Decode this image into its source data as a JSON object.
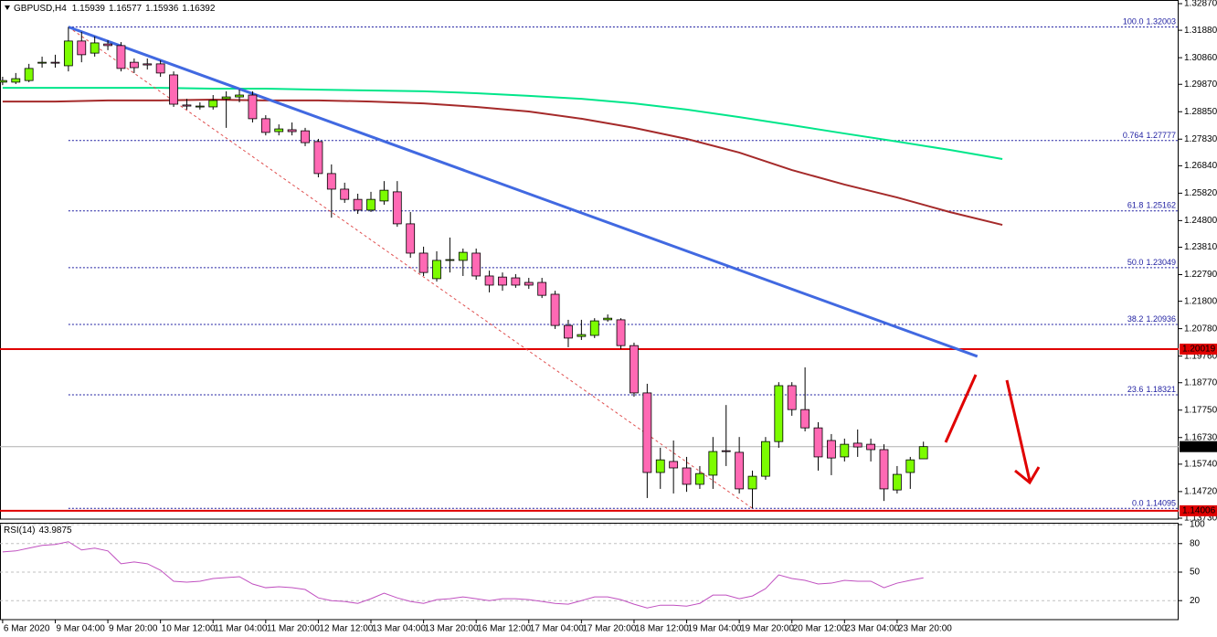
{
  "chart_data": {
    "type": "candlestick",
    "symbol": "GBPUSD,H4",
    "categories": [
      "6 Mar 2020",
      null,
      null,
      null,
      "9 Mar 04:00",
      null,
      null,
      null,
      "9 Mar 20:00",
      null,
      null,
      null,
      "10 Mar 12:00",
      null,
      null,
      null,
      "11 Mar 04:00",
      null,
      null,
      null,
      "11 Mar 20:00",
      null,
      null,
      null,
      "12 Mar 12:00",
      null,
      null,
      null,
      "13 Mar 04:00",
      null,
      null,
      null,
      "13 Mar 20:00",
      null,
      null,
      null,
      "16 Mar 12:00",
      null,
      null,
      null,
      "17 Mar 04:00",
      null,
      null,
      null,
      "17 Mar 20:00",
      null,
      null,
      null,
      "18 Mar 12:00",
      null,
      null,
      null,
      "19 Mar 04:00",
      null,
      null,
      null,
      "19 Mar 20:00",
      null,
      null,
      null,
      "20 Mar 12:00",
      null,
      null,
      null,
      "23 Mar 04:00",
      null,
      null,
      null,
      "23 Mar 20:00",
      null,
      null
    ],
    "open": [
      1.2995,
      1.2995,
      1.3001,
      1.3066,
      1.3069,
      1.3056,
      1.3148,
      1.3103,
      1.3137,
      1.3131,
      1.3069,
      1.3063,
      1.3063,
      1.3022,
      1.291,
      1.2903,
      1.2903,
      1.2933,
      1.294,
      1.2947,
      1.2859,
      1.2811,
      1.2818,
      1.2814,
      1.2774,
      1.2655,
      1.2597,
      1.2559,
      1.2519,
      1.2553,
      1.2587,
      1.2468,
      1.2359,
      1.2264,
      1.2332,
      1.2332,
      1.2359,
      1.2274,
      1.227,
      1.2267,
      1.225,
      1.225,
      1.2206,
      1.209,
      1.2049,
      1.2053,
      1.2111,
      1.2111,
      1.2015,
      1.1839,
      1.1543,
      1.1584,
      1.156,
      1.1499,
      1.1533,
      1.1624,
      1.1618,
      1.1482,
      1.1529,
      1.1658,
      1.1866,
      1.1777,
      1.1709,
      1.1662,
      1.1601,
      1.1652,
      1.1648,
      1.1628,
      1.1478,
      1.1543,
      1.15939
    ],
    "high": [
      1.3015,
      1.3029,
      1.3063,
      1.309,
      1.3097,
      1.32003,
      1.3182,
      1.3165,
      1.3151,
      1.3144,
      1.3083,
      1.3083,
      1.3076,
      1.3035,
      1.2933,
      1.292,
      1.2947,
      1.2961,
      1.2967,
      1.2961,
      1.2872,
      1.2838,
      1.2845,
      1.2825,
      1.2784,
      1.2689,
      1.2621,
      1.258,
      1.2587,
      1.2627,
      1.2627,
      1.2512,
      1.2383,
      1.2366,
      1.2417,
      1.2376,
      1.2376,
      1.2294,
      1.2287,
      1.2281,
      1.2267,
      1.2267,
      1.2219,
      1.2111,
      1.2111,
      1.2117,
      1.2131,
      1.2117,
      1.2026,
      1.1873,
      1.1635,
      1.1662,
      1.1601,
      1.1567,
      1.1675,
      1.1794,
      1.1675,
      1.155,
      1.1675,
      1.1879,
      1.1879,
      1.1934,
      1.173,
      1.1686,
      1.1669,
      1.1703,
      1.1669,
      1.1648,
      1.1567,
      1.1601,
      1.16577
    ],
    "low": [
      1.2984,
      1.2988,
      1.2995,
      1.3049,
      1.3049,
      1.3035,
      1.3069,
      1.309,
      1.3114,
      1.3035,
      1.3029,
      1.3042,
      1.3015,
      1.2903,
      1.2893,
      1.2893,
      1.2893,
      1.2825,
      1.292,
      1.2845,
      1.2797,
      1.2797,
      1.2797,
      1.2757,
      1.2641,
      1.2491,
      1.2546,
      1.2505,
      1.2512,
      1.2539,
      1.2457,
      1.2342,
      1.2274,
      1.2253,
      1.2287,
      1.2274,
      1.226,
      1.2213,
      1.2219,
      1.223,
      1.2226,
      1.2192,
      1.2077,
      1.2009,
      1.2036,
      1.2043,
      1.2104,
      1.2002,
      1.1825,
      1.1448,
      1.1482,
      1.1465,
      1.1471,
      1.1482,
      1.1482,
      1.1567,
      1.1465,
      1.14095,
      1.1516,
      1.1635,
      1.1754,
      1.1696,
      1.155,
      1.1533,
      1.1584,
      1.1601,
      1.1584,
      1.1437,
      1.1465,
      1.1482,
      1.15936
    ],
    "close": [
      1.3001,
      1.3008,
      1.3046,
      1.3069,
      1.3066,
      1.3148,
      1.3097,
      1.3141,
      1.3131,
      1.3046,
      1.3049,
      1.3059,
      1.3029,
      1.2913,
      1.2906,
      1.2906,
      1.2927,
      1.294,
      1.2947,
      1.2859,
      1.2808,
      1.2821,
      1.2811,
      1.277,
      1.2655,
      1.2597,
      1.2559,
      1.2519,
      1.2559,
      1.2593,
      1.2468,
      1.2359,
      1.2287,
      1.2332,
      1.2335,
      1.2362,
      1.2274,
      1.224,
      1.224,
      1.224,
      1.224,
      1.2202,
      1.209,
      1.2043,
      1.2056,
      1.2107,
      1.2117,
      1.2015,
      1.1839,
      1.1543,
      1.159,
      1.156,
      1.1499,
      1.1539,
      1.1621,
      1.1621,
      1.1482,
      1.1529,
      1.1658,
      1.1866,
      1.1777,
      1.1709,
      1.1601,
      1.1597,
      1.1648,
      1.1638,
      1.1628,
      1.1482,
      1.1536,
      1.159,
      1.16392
    ],
    "up_color": "#7cfc00",
    "down_color": "#ff69b4",
    "xlim": [
      -0.2,
      89.4
    ],
    "ylim": [
      1.13696,
      1.33006
    ],
    "yticks": [
      {
        "value": 1.3287,
        "label": "1.32870"
      },
      {
        "value": 1.3188,
        "label": "1.31880"
      },
      {
        "value": 1.3086,
        "label": "1.30860"
      },
      {
        "value": 1.2987,
        "label": "1.29870"
      },
      {
        "value": 1.2885,
        "label": "1.28850"
      },
      {
        "value": 1.2783,
        "label": "1.27830"
      },
      {
        "value": 1.2684,
        "label": "1.26840"
      },
      {
        "value": 1.2582,
        "label": "1.25820"
      },
      {
        "value": 1.248,
        "label": "1.24800"
      },
      {
        "value": 1.2381,
        "label": "1.23810"
      },
      {
        "value": 1.2279,
        "label": "1.22790"
      },
      {
        "value": 1.218,
        "label": "1.21800"
      },
      {
        "value": 1.2078,
        "label": "1.20780"
      },
      {
        "value": 1.1976,
        "label": "1.19760"
      },
      {
        "value": 1.1877,
        "label": "1.18770"
      },
      {
        "value": 1.1775,
        "label": "1.17750"
      },
      {
        "value": 1.1673,
        "label": "1.16730"
      },
      {
        "value": 1.1574,
        "label": "1.15740"
      },
      {
        "value": 1.1472,
        "label": "1.14720"
      },
      {
        "value": 1.1373,
        "label": "1.13730"
      }
    ],
    "moving_averages": [
      {
        "color": "#00e68a",
        "x": [
          0,
          4,
          8,
          12,
          16,
          20,
          24,
          28,
          32,
          36,
          40,
          44,
          48,
          52,
          56,
          60,
          64,
          68,
          72,
          76
        ],
        "values": [
          1.2974,
          1.2974,
          1.2974,
          1.2974,
          1.2971,
          1.2971,
          1.2967,
          1.2964,
          1.2961,
          1.2954,
          1.2944,
          1.2933,
          1.2916,
          1.2893,
          1.2865,
          1.2835,
          1.2804,
          1.2774,
          1.2743,
          1.2709
        ]
      },
      {
        "color": "#a52a2a",
        "x": [
          0,
          4,
          8,
          12,
          16,
          20,
          24,
          28,
          32,
          36,
          40,
          44,
          48,
          52,
          56,
          60,
          64,
          68,
          72,
          76
        ],
        "values": [
          1.2923,
          1.2923,
          1.2927,
          1.2927,
          1.293,
          1.2927,
          1.2927,
          1.2923,
          1.2916,
          1.2903,
          1.2886,
          1.2859,
          1.2825,
          1.2784,
          1.2733,
          1.2668,
          1.2614,
          1.2566,
          1.2512,
          1.2464
        ]
      }
    ],
    "trendline": {
      "color": "#4169e1",
      "x": [
        5,
        74.1
      ],
      "y": [
        1.32003,
        1.1975
      ]
    },
    "fib_line": {
      "color": "#e05050",
      "x": [
        5,
        57
      ],
      "y": [
        1.32003,
        1.14095
      ]
    },
    "fibonacci": {
      "color": "#1c1ca0",
      "start": 5,
      "levels": [
        {
          "level": "100.0",
          "price": 1.32003
        },
        {
          "level": "0.764",
          "price": 1.27777
        },
        {
          "level": "61.8",
          "price": 1.25162
        },
        {
          "level": "50.0",
          "price": 1.23049
        },
        {
          "level": "38.2",
          "price": 1.20936
        },
        {
          "level": "23.6",
          "price": 1.18321
        },
        {
          "level": "0.0",
          "price": 1.14095
        }
      ]
    },
    "horizontal_levels": [
      {
        "value": 1.20019,
        "color": "#e00000"
      },
      {
        "value": 1.14006,
        "color": "#e00000"
      }
    ],
    "rsi": {
      "title": "RSI(14)",
      "color": "#c050c0",
      "ylim": [
        0,
        100
      ],
      "yticks": [
        100,
        80,
        50,
        20
      ],
      "values": [
        71.3,
        72.3,
        75.2,
        78.1,
        79.1,
        82.0,
        73.3,
        75.2,
        72.3,
        58.8,
        60.7,
        58.8,
        52.0,
        40.4,
        39.4,
        40.4,
        43.3,
        44.2,
        45.2,
        37.5,
        33.6,
        34.6,
        33.6,
        31.7,
        22.9,
        20.0,
        19.1,
        17.1,
        22.0,
        27.8,
        22.9,
        19.1,
        17.1,
        21.0,
        22.0,
        23.9,
        22.0,
        20.0,
        22.0,
        22.0,
        21.0,
        19.1,
        17.1,
        16.2,
        20.0,
        23.9,
        23.9,
        21.0,
        16.2,
        12.3,
        15.2,
        15.2,
        14.2,
        17.1,
        25.8,
        25.8,
        22.0,
        24.9,
        32.6,
        47.1,
        43.3,
        41.3,
        37.5,
        38.4,
        41.3,
        40.4,
        40.4,
        33.6,
        38.4,
        41.3,
        43.9875
      ]
    }
  }
}
